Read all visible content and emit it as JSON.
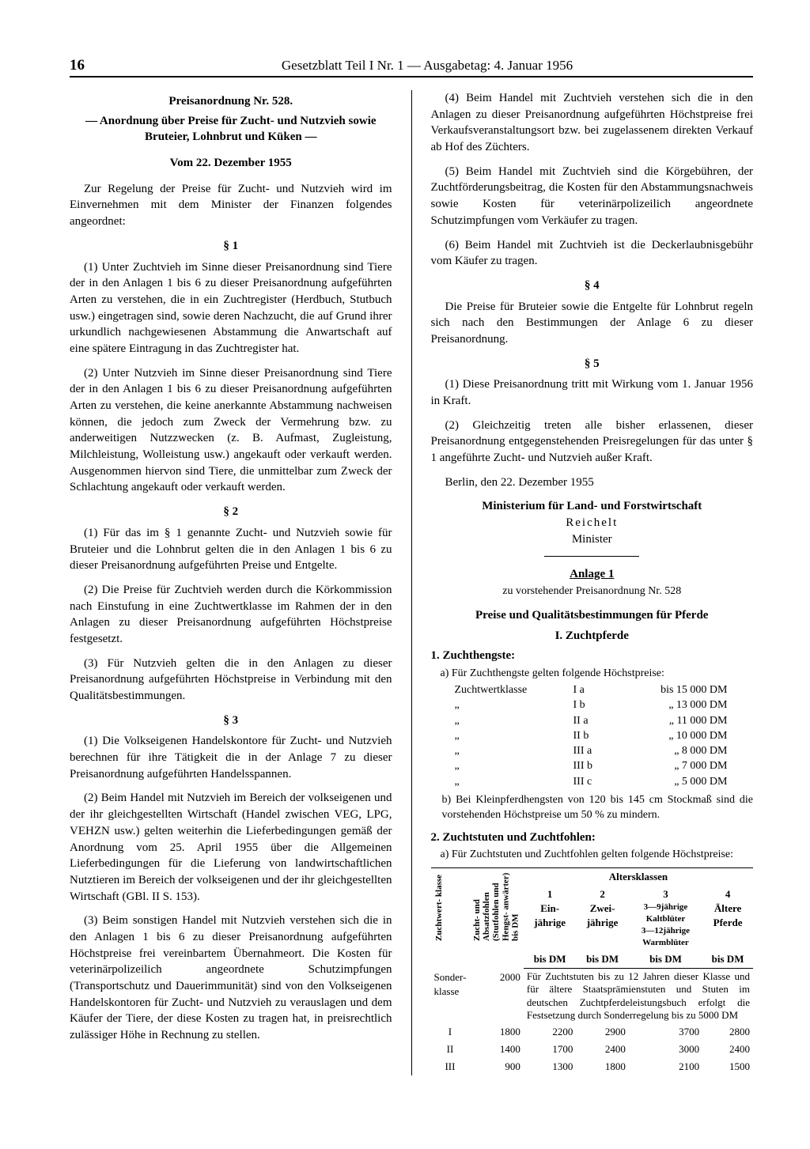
{
  "header": {
    "page_number": "16",
    "title": "Gesetzblatt Teil I Nr. 1 — Ausgabetag: 4. Januar 1956"
  },
  "left": {
    "ord_title": "Preisanordnung Nr. 528.",
    "ord_sub": "— Anordnung über Preise für Zucht- und Nutzvieh sowie Bruteier, Lohnbrut und Küken —",
    "date": "Vom 22. Dezember 1955",
    "intro": "Zur Regelung der Preise für Zucht- und Nutzvieh wird im Einvernehmen mit dem Minister der Finanzen folgendes angeordnet:",
    "s1": "§ 1",
    "s1p1": "(1) Unter Zuchtvieh im Sinne dieser Preisanordnung sind Tiere der in den Anlagen 1 bis 6 zu dieser Preisanordnung aufgeführten Arten zu verstehen, die in ein Zuchtregister (Herdbuch, Stutbuch usw.) eingetragen sind, sowie deren Nachzucht, die auf Grund ihrer urkundlich nachgewiesenen Abstammung die Anwartschaft auf eine spätere Eintragung in das Zuchtregister hat.",
    "s1p2": "(2) Unter Nutzvieh im Sinne dieser Preisanordnung sind Tiere der in den Anlagen 1 bis 6 zu dieser Preisanordnung aufgeführten Arten zu verstehen, die keine anerkannte Abstammung nachweisen können, die jedoch zum Zweck der Vermehrung bzw. zu anderweitigen Nutzzwecken (z. B. Aufmast, Zugleistung, Milchleistung, Wolleistung usw.) angekauft oder verkauft werden. Ausgenommen hiervon sind Tiere, die unmittelbar zum Zweck der Schlachtung angekauft oder verkauft werden.",
    "s2": "§ 2",
    "s2p1": "(1) Für das im § 1 genannte Zucht- und Nutzvieh sowie für Bruteier und die Lohnbrut gelten die in den Anlagen 1 bis 6 zu dieser Preisanordnung aufgeführten Preise und Entgelte.",
    "s2p2": "(2) Die Preise für Zuchtvieh werden durch die Körkommission nach Einstufung in eine Zuchtwertklasse im Rahmen der in den Anlagen zu dieser Preisanordnung aufgeführten Höchstpreise festgesetzt.",
    "s2p3": "(3) Für Nutzvieh gelten die in den Anlagen zu dieser Preisanordnung aufgeführten Höchstpreise in Verbindung mit den Qualitätsbestimmungen.",
    "s3": "§ 3",
    "s3p1": "(1) Die Volkseigenen Handelskontore für Zucht- und Nutzvieh berechnen für ihre Tätigkeit die in der Anlage 7 zu dieser Preisanordnung aufgeführten Handelsspannen.",
    "s3p2": "(2) Beim Handel mit Nutzvieh im Bereich der volkseigenen und der ihr gleichgestellten Wirtschaft (Handel zwischen VEG, LPG, VEHZN usw.) gelten weiterhin die Lieferbedingungen gemäß der Anordnung vom 25. April 1955 über die Allgemeinen Lieferbedingungen für die Lieferung von landwirtschaftlichen Nutztieren im Bereich der volkseigenen und der ihr gleichgestellten Wirtschaft (GBl. II S. 153).",
    "s3p3": "(3) Beim sonstigen Handel mit Nutzvieh verstehen sich die in den Anlagen 1 bis 6 zu dieser Preisanordnung aufgeführten Höchstpreise frei vereinbartem Übernahmeort. Die Kosten für veterinärpolizeilich angeordnete Schutzimpfungen (Transportschutz und Dauerimmunität) sind von den Volkseigenen Handelskontoren für Zucht- und Nutzvieh zu verauslagen und dem Käufer der Tiere, der diese Kosten zu tragen hat, in preisrechtlich zulässiger Höhe in Rechnung zu stellen."
  },
  "right": {
    "s3p4": "(4) Beim Handel mit Zuchtvieh verstehen sich die in den Anlagen zu dieser Preisanordnung aufgeführten Höchstpreise frei Verkaufsveranstaltungsort bzw. bei zugelassenem direkten Verkauf ab Hof des Züchters.",
    "s3p5": "(5) Beim Handel mit Zuchtvieh sind die Körgebühren, der Zuchtförderungsbeitrag, die Kosten für den Abstammungsnachweis sowie Kosten für veterinärpolizeilich angeordnete Schutzimpfungen vom Verkäufer zu tragen.",
    "s3p6": "(6) Beim Handel mit Zuchtvieh ist die Deckerlaubnisgebühr vom Käufer zu tragen.",
    "s4": "§ 4",
    "s4p1": "Die Preise für Bruteier sowie die Entgelte für Lohnbrut regeln sich nach den Bestimmungen der Anlage 6 zu dieser Preisanordnung.",
    "s5": "§ 5",
    "s5p1": "(1) Diese Preisanordnung tritt mit Wirkung vom 1. Januar 1956 in Kraft.",
    "s5p2": "(2) Gleichzeitig treten alle bisher erlassenen, dieser Preisanordnung entgegenstehenden Preisregelungen für das unter § 1 angeführte Zucht- und Nutzvieh außer Kraft.",
    "place_date": "Berlin, den 22. Dezember 1955",
    "ministry": "Ministerium für Land- und Forstwirtschaft",
    "signer": "Reichelt",
    "signer_title": "Minister",
    "anlage_title": "Anlage 1",
    "anlage_sub": "zu vorstehender Preisanordnung Nr. 528",
    "anlage_h1": "Preise und Qualitätsbestimmungen für Pferde",
    "anlage_h2": "I. Zuchtpferde",
    "h_list1": "1. Zuchthengste:",
    "list1a": "a) Für Zuchthengste gelten folgende Höchstpreise:",
    "price_label": "Zuchtwertklasse",
    "ditto": "„",
    "prices": [
      {
        "cls": "I a",
        "amt": "bis 15 000 DM"
      },
      {
        "cls": "I b",
        "amt": "„  13 000 DM"
      },
      {
        "cls": "II a",
        "amt": "„  11 000 DM"
      },
      {
        "cls": "II b",
        "amt": "„  10 000 DM"
      },
      {
        "cls": "III a",
        "amt": "„   8 000 DM"
      },
      {
        "cls": "III b",
        "amt": "„   7 000 DM"
      },
      {
        "cls": "III c",
        "amt": "„   5 000 DM"
      }
    ],
    "list1b": "b) Bei Kleinpferdhengsten von 120 bis 145 cm Stockmaß sind die vorstehenden Höchstpreise um 50 % zu mindern.",
    "h_list2": "2. Zuchtstuten und Zuchtfohlen:",
    "list2a": "a) Für Zuchtstuten und Zuchtfohlen gelten folgende Höchstpreise:",
    "tbl": {
      "col_rot1": "Zuchtwert-\nklasse",
      "col_rot2": "Zucht- und\nAbsatzfohlen\n(Stutfohlen\nund Hengst-\nanwärter)\nbis DM",
      "age_header": "Altersklassen",
      "c1n": "1",
      "c1": "Ein-\njährige",
      "c2n": "2",
      "c2": "Zwei-\njährige",
      "c3n": "3",
      "c3": "3—9jährige\nKaltblüter\n3—12jährige\nWarmblüter",
      "c4n": "4",
      "c4": "Ältere\nPferde",
      "bisdm": "bis DM",
      "sonder_lbl": "Sonder-\nklasse",
      "sonder_val": "2000",
      "sonder_txt": "Für Zuchtstuten bis zu 12 Jahren dieser Klasse und für ältere Staatsprämienstuten und Stuten im deutschen Zuchtpferdeleistungsbuch erfolgt die Festsetzung durch Sonderregelung bis zu 5000 DM",
      "rows": [
        {
          "k": "I",
          "v": [
            "1800",
            "2200",
            "2900",
            "3700",
            "2800"
          ]
        },
        {
          "k": "II",
          "v": [
            "1400",
            "1700",
            "2400",
            "3000",
            "2400"
          ]
        },
        {
          "k": "III",
          "v": [
            "900",
            "1300",
            "1800",
            "2100",
            "1500"
          ]
        }
      ]
    }
  }
}
